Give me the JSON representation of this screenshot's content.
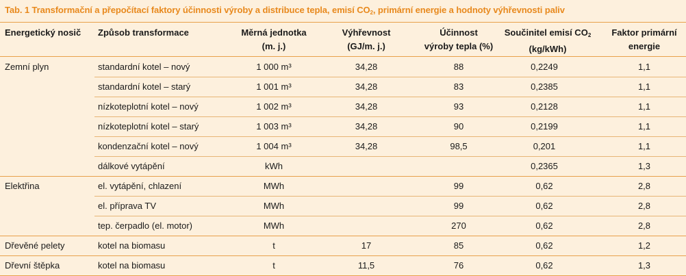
{
  "caption": {
    "pre": "Tab. 1  Transformační a přepočítací faktory účinnosti výroby a distribuce tepla, emisí CO",
    "sub": "2",
    "post": ", primární energie a hodnoty výhřevnosti paliv"
  },
  "headers": {
    "h1": "Energetický nosič",
    "h2": "Způsob transformace",
    "h3a": "Měrná jednotka",
    "h3b": "(m. j.)",
    "h4a": "Výhřevnost",
    "h4b": "(GJ/m. j.)",
    "h5a": "Účinnost",
    "h5b": "výroby tepla (%)",
    "h6a": "Součinitel emisí  CO",
    "h6sub": "2",
    "h6b": "(kg/kWh)",
    "h7a": "Faktor primární",
    "h7b": "energie"
  },
  "rows": [
    {
      "carrier": "Zemní plyn",
      "method": "standardní kotel – nový",
      "unit": "1 000 m³",
      "heat": "34,28",
      "eff": "88",
      "co2": "0,2249",
      "pef": "1,1"
    },
    {
      "carrier": "",
      "method": "standardní kotel – starý",
      "unit": "1 001 m³",
      "heat": "34,28",
      "eff": "83",
      "co2": "0,2385",
      "pef": "1,1"
    },
    {
      "carrier": "",
      "method": "nízkoteplotní kotel – nový",
      "unit": "1 002 m³",
      "heat": "34,28",
      "eff": "93",
      "co2": "0,2128",
      "pef": "1,1"
    },
    {
      "carrier": "",
      "method": "nízkoteplotní kotel – starý",
      "unit": "1 003 m³",
      "heat": "34,28",
      "eff": "90",
      "co2": "0,2199",
      "pef": "1,1"
    },
    {
      "carrier": "",
      "method": "kondenzační kotel – nový",
      "unit": "1 004 m³",
      "heat": "34,28",
      "eff": "98,5",
      "co2": "0,201",
      "pef": "1,1"
    },
    {
      "carrier": "",
      "method": "dálkové vytápění",
      "unit": "kWh",
      "heat": "",
      "eff": "",
      "co2": "0,2365",
      "pef": "1,3"
    },
    {
      "carrier": "Elektřina",
      "method": "el. vytápění, chlazení",
      "unit": "MWh",
      "heat": "",
      "eff": "99",
      "co2": "0,62",
      "pef": "2,8"
    },
    {
      "carrier": "",
      "method": "el. příprava TV",
      "unit": "MWh",
      "heat": "",
      "eff": "99",
      "co2": "0,62",
      "pef": "2,8"
    },
    {
      "carrier": "",
      "method": "tep. čerpadlo (el. motor)",
      "unit": "MWh",
      "heat": "",
      "eff": "270",
      "co2": "0,62",
      "pef": "2,8"
    },
    {
      "carrier": "Dřevěné pelety",
      "method": "kotel na biomasu",
      "unit": "t",
      "heat": "17",
      "eff": "85",
      "co2": "0,62",
      "pef": "1,2"
    },
    {
      "carrier": "Dřevní štěpka",
      "method": "kotel na biomasu",
      "unit": "t",
      "heat": "11,5",
      "eff": "76",
      "co2": "0,62",
      "pef": "1,3"
    }
  ]
}
